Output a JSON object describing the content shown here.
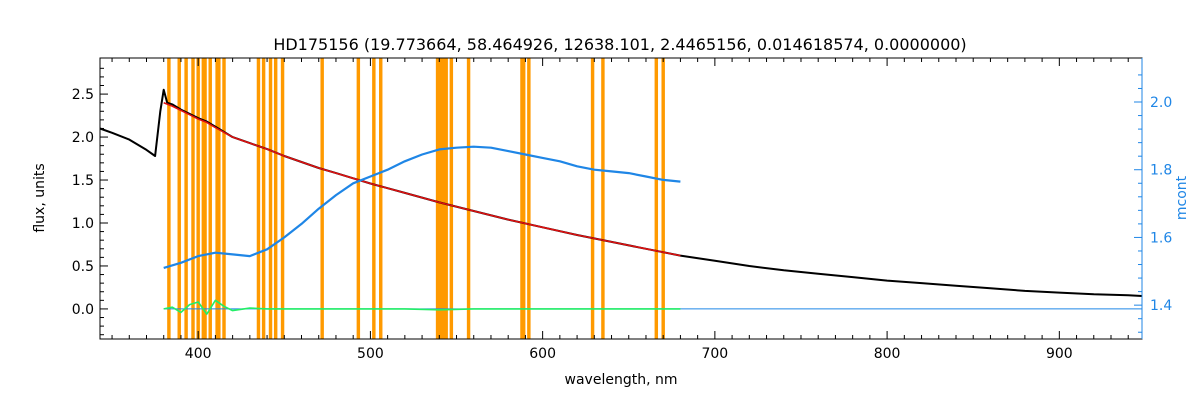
{
  "chart_data": {
    "type": "line",
    "title": "HD175156    (19.773664, 58.464926, 12638.101, 2.4465156, 0.014618574, 0.0000000)",
    "xlabel": "wavelength, nm",
    "ylabel": "flux, units",
    "y2label": "mcont",
    "xlim": [
      343,
      948
    ],
    "ylim": [
      -0.35,
      2.92
    ],
    "y2lim": [
      1.3,
      2.13
    ],
    "xticks": [
      400,
      500,
      600,
      700,
      800,
      900
    ],
    "yticks": [
      0.0,
      0.5,
      1.0,
      1.5,
      2.0,
      2.5
    ],
    "y2ticks": [
      1.4,
      1.6,
      1.8,
      2.0
    ],
    "xtick_labels": [
      "400",
      "500",
      "600",
      "700",
      "800",
      "900"
    ],
    "ytick_labels": [
      "0.0",
      "0.5",
      "1.0",
      "1.5",
      "2.0",
      "2.5"
    ],
    "y2tick_labels": [
      "1.4",
      "1.6",
      "1.8",
      "2.0"
    ],
    "colors": {
      "observed": "#000000",
      "model": "#e01010",
      "mcont": "#1f86e6",
      "residual": "#22ee66",
      "mask": "#ff9a00",
      "axis_right": "#1f86e6"
    },
    "series": [
      {
        "key": "observed",
        "axis": "left",
        "x": [
          343,
          350,
          360,
          370,
          375,
          378,
          380,
          382,
          385,
          390,
          395,
          400,
          405,
          410,
          420,
          430,
          440,
          450,
          460,
          470,
          480,
          490,
          500,
          520,
          540,
          560,
          580,
          600,
          620,
          640,
          660,
          680,
          700,
          720,
          740,
          760,
          780,
          800,
          820,
          840,
          860,
          880,
          900,
          920,
          940,
          948
        ],
        "y": [
          2.1,
          2.05,
          1.97,
          1.85,
          1.78,
          2.3,
          2.55,
          2.4,
          2.38,
          2.32,
          2.27,
          2.22,
          2.18,
          2.12,
          2.0,
          1.93,
          1.86,
          1.78,
          1.71,
          1.64,
          1.58,
          1.52,
          1.46,
          1.35,
          1.24,
          1.14,
          1.04,
          0.95,
          0.86,
          0.78,
          0.7,
          0.62,
          0.56,
          0.5,
          0.45,
          0.41,
          0.37,
          0.33,
          0.3,
          0.27,
          0.24,
          0.21,
          0.19,
          0.17,
          0.16,
          0.15
        ]
      },
      {
        "key": "model",
        "axis": "left",
        "x": [
          380,
          385,
          390,
          395,
          400,
          405,
          410,
          420,
          430,
          440,
          450,
          460,
          470,
          480,
          490,
          500,
          520,
          540,
          560,
          580,
          600,
          620,
          640,
          660,
          680
        ],
        "y": [
          2.4,
          2.36,
          2.31,
          2.26,
          2.21,
          2.17,
          2.11,
          2.0,
          1.93,
          1.86,
          1.78,
          1.71,
          1.64,
          1.58,
          1.52,
          1.46,
          1.35,
          1.24,
          1.14,
          1.04,
          0.95,
          0.86,
          0.78,
          0.7,
          0.62
        ]
      },
      {
        "key": "mcont",
        "axis": "right",
        "x": [
          380,
          390,
          400,
          410,
          420,
          430,
          440,
          450,
          460,
          470,
          480,
          490,
          500,
          510,
          520,
          530,
          540,
          550,
          560,
          570,
          580,
          590,
          600,
          610,
          620,
          630,
          640,
          650,
          660,
          670,
          680
        ],
        "y": [
          1.51,
          1.525,
          1.545,
          1.555,
          1.55,
          1.545,
          1.565,
          1.6,
          1.64,
          1.685,
          1.725,
          1.76,
          1.78,
          1.8,
          1.825,
          1.845,
          1.86,
          1.865,
          1.868,
          1.865,
          1.855,
          1.845,
          1.835,
          1.825,
          1.81,
          1.8,
          1.795,
          1.79,
          1.78,
          1.77,
          1.765
        ]
      },
      {
        "key": "residual",
        "axis": "left",
        "x": [
          380,
          385,
          390,
          395,
          400,
          405,
          410,
          415,
          420,
          430,
          440,
          450,
          460,
          480,
          500,
          520,
          540,
          560,
          580,
          600,
          620,
          640,
          660,
          680
        ],
        "y": [
          0.0,
          0.02,
          -0.04,
          0.05,
          0.08,
          -0.06,
          0.1,
          0.03,
          -0.02,
          0.01,
          0.0,
          0.0,
          0.0,
          0.0,
          0.0,
          0.0,
          -0.01,
          0.0,
          0.0,
          0.0,
          0.0,
          0.0,
          0.0,
          0.0
        ]
      }
    ],
    "masks": [
      {
        "x": 382,
        "w": 2
      },
      {
        "x": 388,
        "w": 2
      },
      {
        "x": 392,
        "w": 2
      },
      {
        "x": 396,
        "w": 2
      },
      {
        "x": 399,
        "w": 2
      },
      {
        "x": 402,
        "w": 3
      },
      {
        "x": 406,
        "w": 2
      },
      {
        "x": 410,
        "w": 3
      },
      {
        "x": 414,
        "w": 2
      },
      {
        "x": 434,
        "w": 2
      },
      {
        "x": 437,
        "w": 2
      },
      {
        "x": 441,
        "w": 2
      },
      {
        "x": 444,
        "w": 2
      },
      {
        "x": 448,
        "w": 2
      },
      {
        "x": 471,
        "w": 2
      },
      {
        "x": 492,
        "w": 2
      },
      {
        "x": 501,
        "w": 2
      },
      {
        "x": 505,
        "w": 2
      },
      {
        "x": 538,
        "w": 7
      },
      {
        "x": 546,
        "w": 2
      },
      {
        "x": 556,
        "w": 2
      },
      {
        "x": 587,
        "w": 3
      },
      {
        "x": 591,
        "w": 2
      },
      {
        "x": 628,
        "w": 2
      },
      {
        "x": 634,
        "w": 2
      },
      {
        "x": 665,
        "w": 2
      },
      {
        "x": 669,
        "w": 2
      }
    ],
    "grid": false,
    "legend": "none"
  }
}
